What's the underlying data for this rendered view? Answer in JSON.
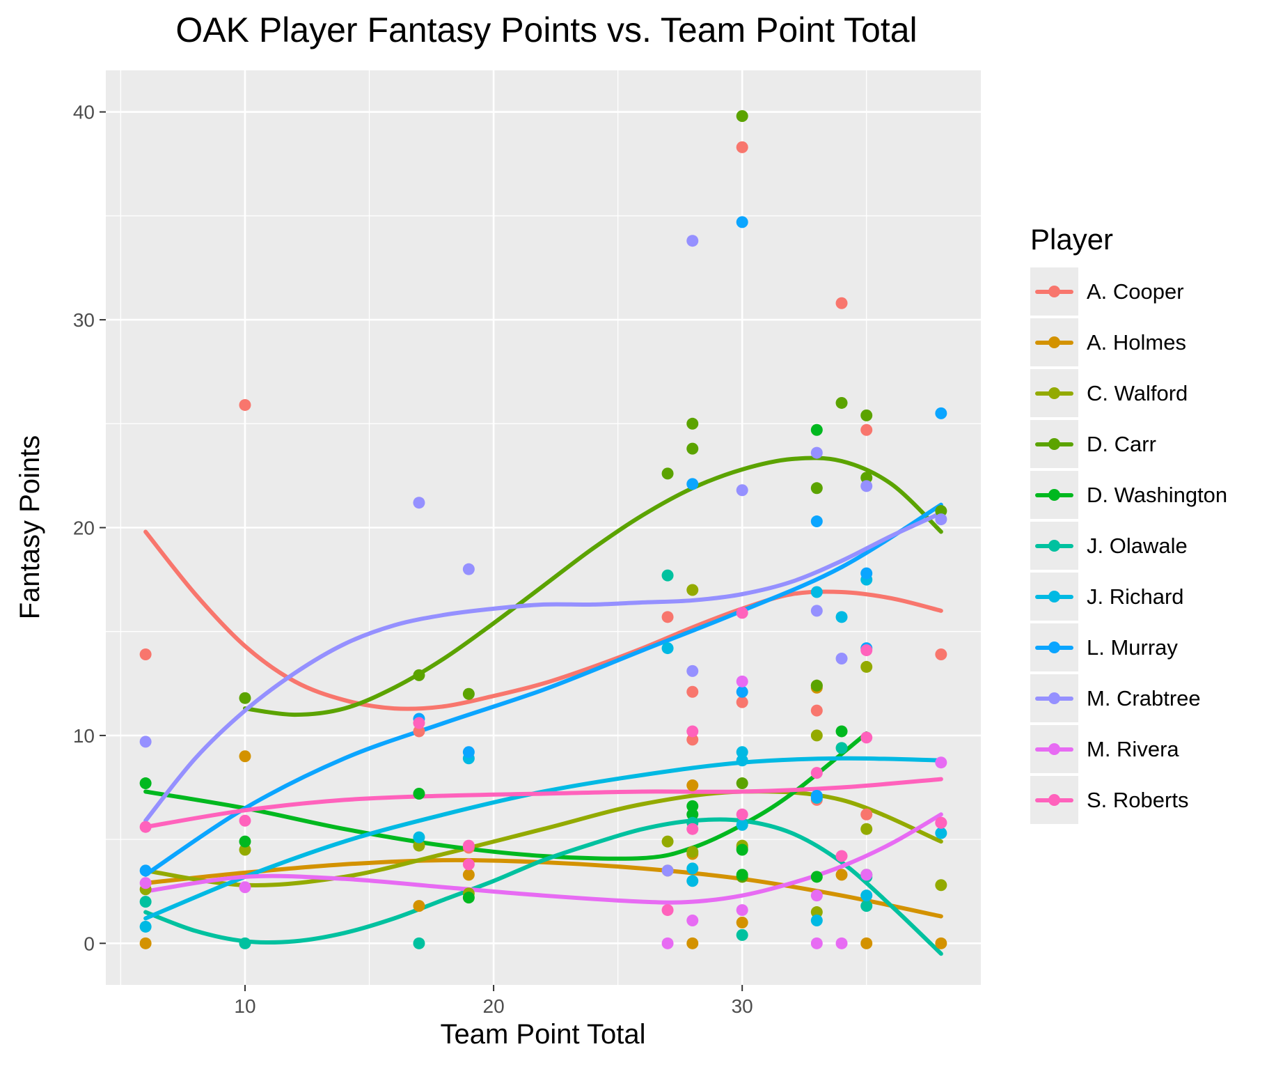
{
  "chart_data": {
    "type": "scatter",
    "title": "OAK Player Fantasy Points vs. Team Point Total",
    "xlabel": "Team Point Total",
    "ylabel": "Fantasy Points",
    "xlim": [
      4.4,
      39.6
    ],
    "ylim": [
      -2.0,
      42.0
    ],
    "xticks": [
      10,
      20,
      30
    ],
    "yticks": [
      0,
      10,
      20,
      30,
      40
    ],
    "grid": true,
    "legend_title": "Player",
    "legend_position": "right",
    "series": [
      {
        "name": "A. Cooper",
        "color": "#F8766D",
        "points": [
          [
            6,
            13.9
          ],
          [
            10,
            25.9
          ],
          [
            17,
            10.2
          ],
          [
            19,
            4.6
          ],
          [
            27,
            15.7
          ],
          [
            28,
            12.1
          ],
          [
            28,
            9.8
          ],
          [
            30,
            38.3
          ],
          [
            30,
            11.6
          ],
          [
            33,
            11.2
          ],
          [
            33,
            6.9
          ],
          [
            34,
            30.8
          ],
          [
            35,
            24.7
          ],
          [
            35,
            6.2
          ],
          [
            38,
            13.9
          ]
        ],
        "smooth": [
          [
            6,
            19.8
          ],
          [
            8,
            16.8
          ],
          [
            10,
            14.3
          ],
          [
            12,
            12.6
          ],
          [
            14,
            11.7
          ],
          [
            16,
            11.3
          ],
          [
            18,
            11.4
          ],
          [
            20,
            11.9
          ],
          [
            22,
            12.5
          ],
          [
            24,
            13.3
          ],
          [
            26,
            14.2
          ],
          [
            28,
            15.2
          ],
          [
            30,
            16.1
          ],
          [
            32,
            16.8
          ],
          [
            34,
            16.9
          ],
          [
            36,
            16.6
          ],
          [
            38,
            16.0
          ]
        ]
      },
      {
        "name": "A. Holmes",
        "color": "#D39200",
        "points": [
          [
            6,
            0.0
          ],
          [
            10,
            9.0
          ],
          [
            17,
            1.8
          ],
          [
            19,
            3.3
          ],
          [
            27,
            3.5
          ],
          [
            28,
            7.6
          ],
          [
            28,
            4.3
          ],
          [
            28,
            0.0
          ],
          [
            30,
            4.6
          ],
          [
            30,
            3.2
          ],
          [
            30,
            1.0
          ],
          [
            33,
            12.3
          ],
          [
            34,
            3.3
          ],
          [
            35,
            0.0
          ],
          [
            38,
            0.0
          ]
        ],
        "smooth": [
          [
            6,
            2.9
          ],
          [
            10,
            3.4
          ],
          [
            14,
            3.8
          ],
          [
            18,
            4.0
          ],
          [
            22,
            3.9
          ],
          [
            26,
            3.6
          ],
          [
            30,
            3.1
          ],
          [
            34,
            2.3
          ],
          [
            38,
            1.3
          ]
        ]
      },
      {
        "name": "C. Walford",
        "color": "#93AA00",
        "points": [
          [
            6,
            2.6
          ],
          [
            10,
            4.5
          ],
          [
            17,
            4.7
          ],
          [
            19,
            2.4
          ],
          [
            27,
            4.9
          ],
          [
            28,
            17.0
          ],
          [
            28,
            4.4
          ],
          [
            30,
            4.7
          ],
          [
            33,
            10.0
          ],
          [
            33,
            12.4
          ],
          [
            33,
            1.5
          ],
          [
            35,
            13.3
          ],
          [
            35,
            5.5
          ],
          [
            38,
            2.8
          ]
        ],
        "smooth": [
          [
            6,
            3.5
          ],
          [
            10,
            2.8
          ],
          [
            14,
            3.2
          ],
          [
            18,
            4.3
          ],
          [
            22,
            5.5
          ],
          [
            26,
            6.7
          ],
          [
            30,
            7.3
          ],
          [
            34,
            6.9
          ],
          [
            38,
            4.9
          ]
        ]
      },
      {
        "name": "D. Carr",
        "color": "#5BA300",
        "points": [
          [
            10,
            11.8
          ],
          [
            17,
            12.9
          ],
          [
            19,
            12.0
          ],
          [
            27,
            22.6
          ],
          [
            28,
            25.0
          ],
          [
            28,
            23.8
          ],
          [
            30,
            39.8
          ],
          [
            30,
            7.7
          ],
          [
            30,
            3.2
          ],
          [
            33,
            21.9
          ],
          [
            33,
            12.4
          ],
          [
            34,
            26.0
          ],
          [
            35,
            25.4
          ],
          [
            35,
            22.4
          ],
          [
            38,
            20.8
          ]
        ],
        "smooth": [
          [
            10,
            11.3
          ],
          [
            12,
            11.0
          ],
          [
            14,
            11.3
          ],
          [
            16,
            12.3
          ],
          [
            18,
            13.7
          ],
          [
            20,
            15.4
          ],
          [
            22,
            17.2
          ],
          [
            24,
            19.0
          ],
          [
            26,
            20.6
          ],
          [
            28,
            21.9
          ],
          [
            30,
            22.8
          ],
          [
            32,
            23.3
          ],
          [
            34,
            23.2
          ],
          [
            36,
            22.1
          ],
          [
            38,
            19.8
          ]
        ]
      },
      {
        "name": "D. Washington",
        "color": "#00B81F",
        "points": [
          [
            6,
            7.7
          ],
          [
            10,
            4.9
          ],
          [
            17,
            7.2
          ],
          [
            19,
            2.2
          ],
          [
            28,
            6.6
          ],
          [
            28,
            6.2
          ],
          [
            30,
            4.5
          ],
          [
            30,
            3.3
          ],
          [
            33,
            24.7
          ],
          [
            33,
            3.2
          ],
          [
            34,
            10.2
          ],
          [
            35,
            3.3
          ]
        ],
        "smooth": [
          [
            6,
            7.3
          ],
          [
            10,
            6.5
          ],
          [
            14,
            5.5
          ],
          [
            18,
            4.7
          ],
          [
            22,
            4.2
          ],
          [
            26,
            4.1
          ],
          [
            28,
            4.6
          ],
          [
            30,
            5.7
          ],
          [
            32,
            7.2
          ],
          [
            35,
            10.1
          ]
        ]
      },
      {
        "name": "J. Olawale",
        "color": "#00C19F",
        "points": [
          [
            6,
            2.0
          ],
          [
            10,
            0.0
          ],
          [
            17,
            0.0
          ],
          [
            27,
            17.7
          ],
          [
            28,
            5.8
          ],
          [
            30,
            0.4
          ],
          [
            34,
            9.4
          ],
          [
            35,
            1.8
          ],
          [
            35,
            3.2
          ]
        ],
        "smooth": [
          [
            6,
            1.5
          ],
          [
            8,
            0.6
          ],
          [
            10,
            0.1
          ],
          [
            12,
            0.1
          ],
          [
            14,
            0.5
          ],
          [
            16,
            1.2
          ],
          [
            18,
            2.1
          ],
          [
            20,
            3.0
          ],
          [
            22,
            4.0
          ],
          [
            24,
            4.8
          ],
          [
            26,
            5.5
          ],
          [
            28,
            5.9
          ],
          [
            30,
            5.9
          ],
          [
            32,
            5.3
          ],
          [
            34,
            3.9
          ],
          [
            36,
            1.8
          ],
          [
            38,
            -0.5
          ]
        ]
      },
      {
        "name": "J. Richard",
        "color": "#00B9E3",
        "points": [
          [
            6,
            0.8
          ],
          [
            17,
            5.1
          ],
          [
            19,
            8.9
          ],
          [
            27,
            14.2
          ],
          [
            28,
            3.6
          ],
          [
            28,
            3.0
          ],
          [
            30,
            9.2
          ],
          [
            30,
            8.8
          ],
          [
            30,
            5.7
          ],
          [
            33,
            16.9
          ],
          [
            33,
            7.0
          ],
          [
            33,
            1.1
          ],
          [
            34,
            15.7
          ],
          [
            35,
            17.5
          ],
          [
            35,
            2.3
          ],
          [
            38,
            5.3
          ]
        ],
        "smooth": [
          [
            6,
            1.2
          ],
          [
            10,
            3.2
          ],
          [
            14,
            4.9
          ],
          [
            18,
            6.2
          ],
          [
            22,
            7.3
          ],
          [
            26,
            8.1
          ],
          [
            30,
            8.7
          ],
          [
            34,
            8.9
          ],
          [
            38,
            8.8
          ]
        ]
      },
      {
        "name": "L. Murray",
        "color": "#0BA5FF",
        "points": [
          [
            6,
            3.5
          ],
          [
            17,
            10.8
          ],
          [
            19,
            9.2
          ],
          [
            28,
            22.1
          ],
          [
            30,
            34.7
          ],
          [
            30,
            12.1
          ],
          [
            33,
            20.3
          ],
          [
            33,
            7.1
          ],
          [
            35,
            17.8
          ],
          [
            35,
            14.2
          ],
          [
            38,
            25.5
          ]
        ],
        "smooth": [
          [
            6,
            3.3
          ],
          [
            10,
            6.5
          ],
          [
            14,
            8.9
          ],
          [
            18,
            10.6
          ],
          [
            22,
            12.2
          ],
          [
            26,
            14.1
          ],
          [
            30,
            16.0
          ],
          [
            34,
            18.1
          ],
          [
            38,
            21.1
          ]
        ]
      },
      {
        "name": "M. Crabtree",
        "color": "#9590FF",
        "points": [
          [
            6,
            9.7
          ],
          [
            17,
            21.2
          ],
          [
            19,
            18.0
          ],
          [
            27,
            3.5
          ],
          [
            28,
            33.8
          ],
          [
            28,
            13.1
          ],
          [
            30,
            21.8
          ],
          [
            33,
            23.6
          ],
          [
            33,
            16.0
          ],
          [
            34,
            13.7
          ],
          [
            35,
            22.0
          ],
          [
            38,
            20.4
          ]
        ],
        "smooth": [
          [
            6,
            5.9
          ],
          [
            8,
            8.9
          ],
          [
            10,
            11.2
          ],
          [
            12,
            13.0
          ],
          [
            14,
            14.4
          ],
          [
            16,
            15.3
          ],
          [
            18,
            15.8
          ],
          [
            20,
            16.1
          ],
          [
            22,
            16.3
          ],
          [
            24,
            16.3
          ],
          [
            26,
            16.4
          ],
          [
            28,
            16.5
          ],
          [
            30,
            16.8
          ],
          [
            32,
            17.4
          ],
          [
            34,
            18.4
          ],
          [
            36,
            19.6
          ],
          [
            38,
            20.7
          ]
        ]
      },
      {
        "name": "M. Rivera",
        "color": "#E76BF3",
        "points": [
          [
            6,
            2.9
          ],
          [
            10,
            2.7
          ],
          [
            27,
            0.0
          ],
          [
            28,
            1.1
          ],
          [
            30,
            12.6
          ],
          [
            30,
            1.6
          ],
          [
            33,
            2.3
          ],
          [
            33,
            0.0
          ],
          [
            34,
            0.0
          ],
          [
            35,
            3.3
          ],
          [
            38,
            8.7
          ],
          [
            38,
            5.8
          ]
        ],
        "smooth": [
          [
            6,
            2.5
          ],
          [
            10,
            3.2
          ],
          [
            14,
            3.1
          ],
          [
            18,
            2.7
          ],
          [
            22,
            2.3
          ],
          [
            26,
            2.0
          ],
          [
            28,
            2.0
          ],
          [
            30,
            2.3
          ],
          [
            32,
            2.9
          ],
          [
            34,
            3.7
          ],
          [
            36,
            4.8
          ],
          [
            38,
            6.2
          ]
        ]
      },
      {
        "name": "S. Roberts",
        "color": "#FF62BC",
        "points": [
          [
            6,
            5.6
          ],
          [
            10,
            5.9
          ],
          [
            17,
            10.6
          ],
          [
            19,
            4.7
          ],
          [
            19,
            3.8
          ],
          [
            27,
            1.6
          ],
          [
            28,
            10.2
          ],
          [
            28,
            5.5
          ],
          [
            30,
            15.9
          ],
          [
            30,
            6.2
          ],
          [
            33,
            8.2
          ],
          [
            34,
            4.2
          ],
          [
            35,
            14.1
          ],
          [
            35,
            9.9
          ],
          [
            38,
            5.8
          ]
        ],
        "smooth": [
          [
            6,
            5.6
          ],
          [
            10,
            6.4
          ],
          [
            14,
            6.9
          ],
          [
            18,
            7.1
          ],
          [
            22,
            7.2
          ],
          [
            26,
            7.3
          ],
          [
            30,
            7.3
          ],
          [
            34,
            7.5
          ],
          [
            38,
            7.9
          ]
        ]
      }
    ]
  }
}
